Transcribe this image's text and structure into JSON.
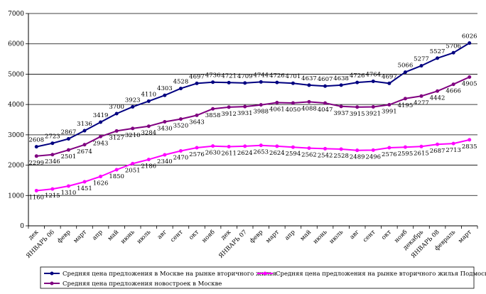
{
  "chart_data": {
    "type": "line",
    "title": "",
    "xlabel": "",
    "ylabel": "",
    "ylim": [
      0,
      7000
    ],
    "yticks": [
      "0",
      "1000",
      "2000",
      "3000",
      "4000",
      "5000",
      "6000",
      "7000"
    ],
    "grid": "horizontal",
    "legend_position": "bottom",
    "categories": [
      "дек",
      "ЯНВАРЬ 06",
      "февр",
      "март",
      "апр",
      "май",
      "июнь",
      "июль",
      "авг",
      "сент",
      "окт",
      "нояб",
      "дек",
      "ЯНВАРЬ 07",
      "февр",
      "март",
      "апр",
      "май",
      "июнь",
      "июль",
      "авг",
      "сент",
      "окт",
      "нояб",
      "декабрь",
      "ЯНВАРЬ 08",
      "февраль",
      "март"
    ],
    "series": [
      {
        "name": "Средняя цена предложения в Москве на рынке вторичного жилья",
        "color": "#000080",
        "values": [
          2608,
          2723,
          2867,
          3136,
          3419,
          3700,
          3923,
          4110,
          4303,
          4528,
          4697,
          4736,
          4721,
          4709,
          4744,
          4726,
          4701,
          4637,
          4607,
          4638,
          4726,
          4764,
          4697,
          5066,
          5277,
          5527,
          5706,
          6026
        ],
        "labels": [
          "2608",
          "2723",
          "2867",
          "3136",
          "3419",
          "3700",
          "3923",
          "4110",
          "4303",
          "4528",
          "4697",
          "4736",
          "4721",
          "4709",
          "4744",
          "4726",
          "4701",
          "4637",
          "4607",
          "4638",
          "4726",
          "4764",
          "4697",
          "5066",
          "5277",
          "5527",
          "5706",
          "6026"
        ]
      },
      {
        "name": "Средняя цена предложения новостроек в Москве",
        "color": "#800080",
        "values": [
          2299,
          2346,
          2501,
          2674,
          2943,
          3127,
          3210,
          3284,
          3430,
          3520,
          3643,
          3858,
          3912,
          3931,
          3988,
          4061,
          4050,
          4088,
          4047,
          3937,
          3915,
          3921,
          3991,
          4195,
          4277,
          4442,
          4666,
          4905
        ],
        "labels": [
          "2299",
          "2346",
          "2501",
          "2674",
          "2943",
          "3127",
          "3210",
          "3284",
          "3430",
          "3520",
          "3643",
          "3858",
          "3912",
          "3931",
          "3988",
          "4061",
          "4050",
          "4088",
          "4047",
          "3937",
          "3915",
          "3921",
          "3991",
          "4195",
          "4277",
          "4442",
          "4666",
          "4905"
        ]
      },
      {
        "name": "Средняя цена предложения на рынке вторичного жилья Подмосковья",
        "color": "#FF00FF",
        "values": [
          1160,
          1215,
          1310,
          1451,
          1626,
          1850,
          2051,
          2186,
          2340,
          2470,
          2576,
          2630,
          2611,
          2624,
          2653,
          2624,
          2594,
          2562,
          2542,
          2528,
          2489,
          2496,
          2576,
          2595,
          2615,
          2687,
          2713,
          2835
        ],
        "labels": [
          "1160",
          "1215",
          "1310",
          "1451",
          "1626",
          "1850",
          "2051",
          "2186",
          "2340",
          "2470",
          "2576",
          "2630",
          "2611",
          "2624",
          "2653",
          "2624",
          "2594",
          "2562",
          "2542",
          "2528",
          "2489",
          "2496",
          "2576",
          "2595",
          "2615",
          "2687",
          "2713",
          "2835"
        ]
      }
    ]
  }
}
